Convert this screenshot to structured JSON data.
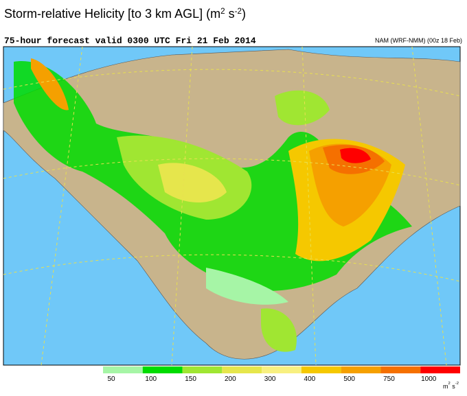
{
  "header": {
    "title": [
      {
        "text": "Storm-relative Helicity [to 3 km AGL] (m"
      },
      {
        "sup": "2"
      },
      {
        "text": " s"
      },
      {
        "sup": "-2"
      },
      {
        "text": ")"
      }
    ],
    "subtitle": "75-hour forecast valid 0300 UTC Fri 21 Feb 2014",
    "model": "NAM (WRF-NMM) (00z 18 Feb)"
  },
  "legend": {
    "ticks": [
      50,
      100,
      150,
      200,
      300,
      400,
      500,
      750,
      1000
    ],
    "colors": [
      "#a6f5a6",
      "#00dc00",
      "#a0e632",
      "#e6e64c",
      "#f8f080",
      "#f5c800",
      "#f5a000",
      "#f57000",
      "#ff0000"
    ],
    "units": [
      {
        "text": "m"
      },
      {
        "sup": "2"
      },
      {
        "text": " s"
      },
      {
        "sup": "-2"
      }
    ]
  }
}
